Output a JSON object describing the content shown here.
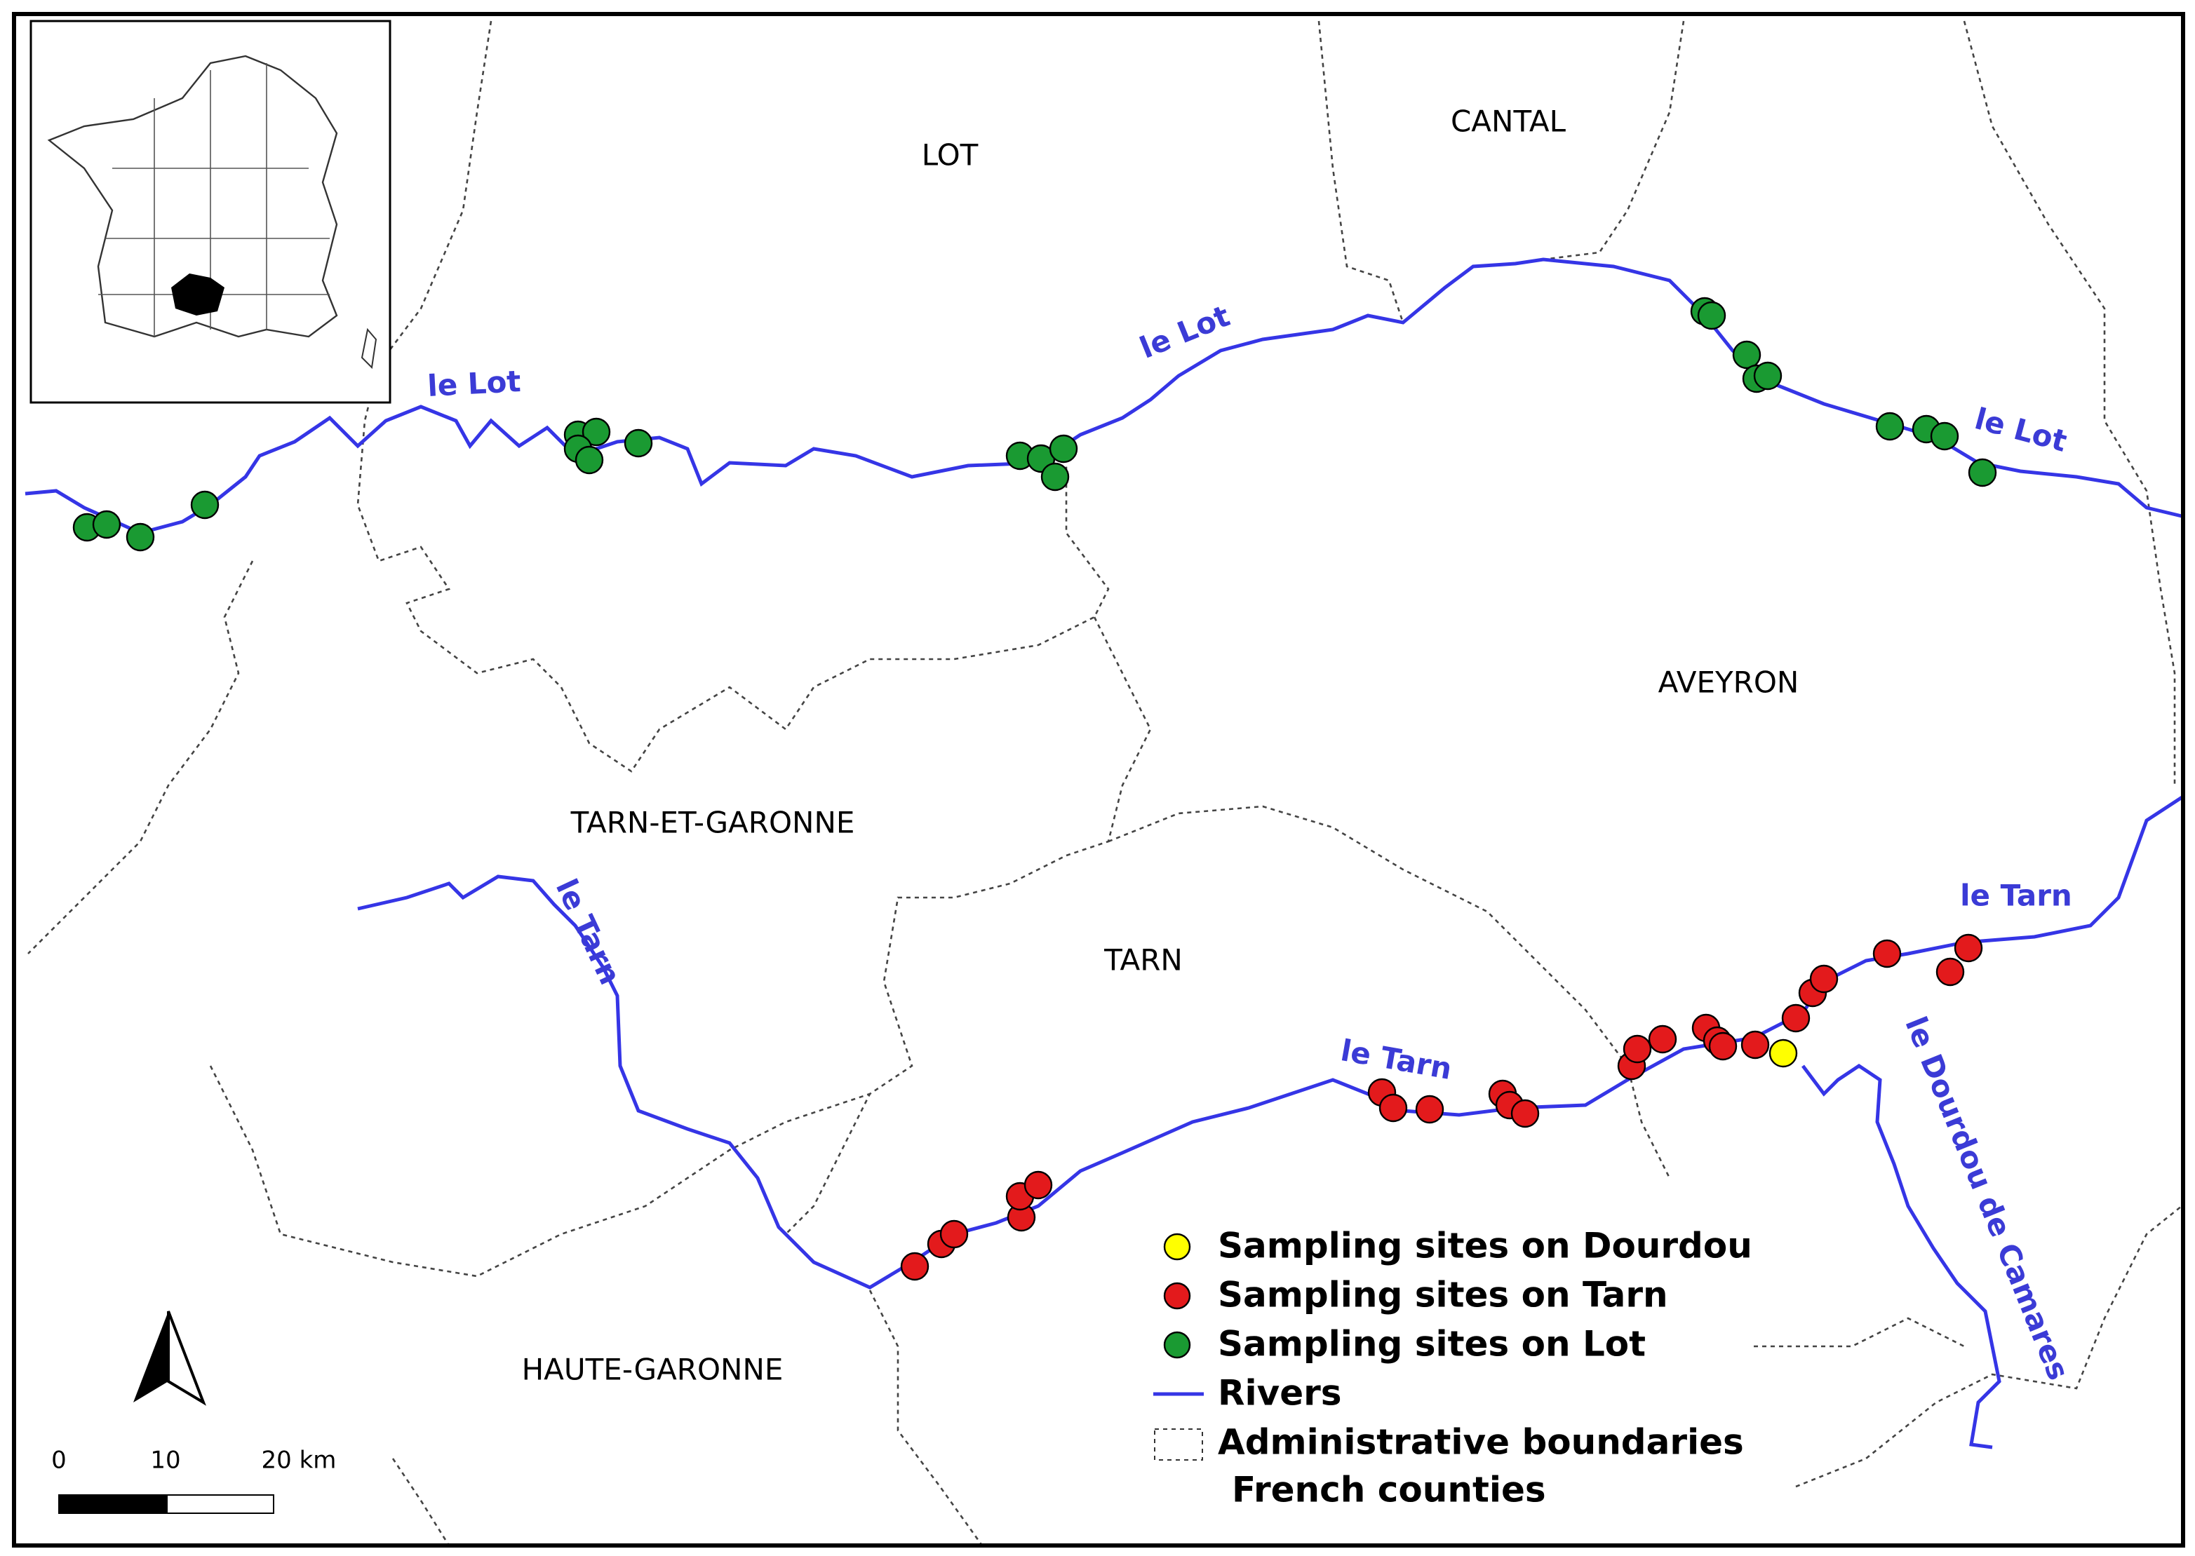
{
  "map": {
    "departments": [
      "LOT",
      "CANTAL",
      "AVEYRON",
      "TARN-ET-GARONNE",
      "TARN",
      "HAUTE-GARONNE"
    ],
    "rivers": [
      "le Lot",
      "le Lot",
      "le Lot",
      "le Tarn",
      "le Tarn",
      "le Tarn",
      "le Dourdou de Camares"
    ],
    "legend": [
      "Sampling sites on Dourdou",
      "Sampling sites on Tarn",
      "Sampling sites on Lot",
      "Rivers",
      "Administrative boundaries",
      "French counties"
    ],
    "scale_bar": [
      "0",
      "10",
      "20 km"
    ]
  }
}
